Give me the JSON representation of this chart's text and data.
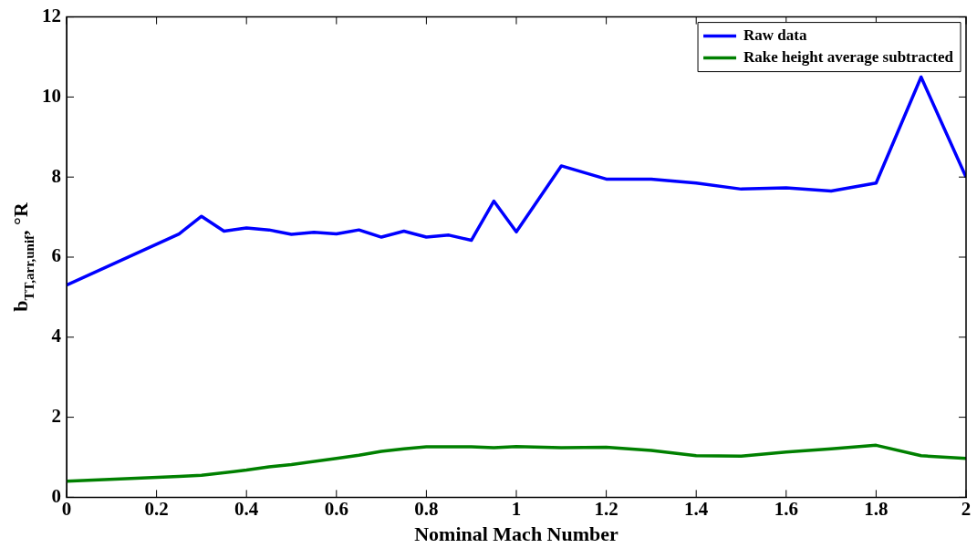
{
  "chart_data": {
    "type": "line",
    "xlabel": "Nominal Mach Number",
    "ylabel": "b$_{T}$$_{T,arr,unif}$, °R",
    "xlim": [
      0,
      2
    ],
    "xticks": [
      0,
      0.2,
      0.4,
      0.6,
      0.8,
      1,
      1.2,
      1.4,
      1.6,
      1.8,
      2
    ],
    "ylim": [
      0,
      12
    ],
    "yticks": [
      0,
      2,
      4,
      6,
      8,
      10,
      12
    ],
    "grid": false,
    "legend": "top right",
    "marker": "none",
    "line_style": "solid",
    "series": [
      {
        "name": "Raw data",
        "color": "#0000ff",
        "x": [
          0,
          0.25,
          0.3,
          0.35,
          0.4,
          0.45,
          0.5,
          0.55,
          0.6,
          0.65,
          0.7,
          0.75,
          0.8,
          0.85,
          0.9,
          0.95,
          1.0,
          1.1,
          1.2,
          1.3,
          1.4,
          1.5,
          1.6,
          1.7,
          1.8,
          1.9,
          2.0
        ],
        "values": [
          5.3,
          6.58,
          7.02,
          6.65,
          6.73,
          6.68,
          6.57,
          6.62,
          6.58,
          6.68,
          6.5,
          6.65,
          6.5,
          6.55,
          6.42,
          7.4,
          6.63,
          8.28,
          7.95,
          7.95,
          7.85,
          7.7,
          7.73,
          7.65,
          7.85,
          10.5,
          8.0
        ]
      },
      {
        "name": "Rake height average subtracted",
        "color": "#008000",
        "x": [
          0,
          0.25,
          0.3,
          0.4,
          0.45,
          0.5,
          0.6,
          0.65,
          0.7,
          0.75,
          0.8,
          0.9,
          0.95,
          1.0,
          1.1,
          1.2,
          1.3,
          1.4,
          1.5,
          1.6,
          1.7,
          1.8,
          1.9,
          2.0
        ],
        "values": [
          0.4,
          0.52,
          0.55,
          0.68,
          0.76,
          0.82,
          0.97,
          1.05,
          1.15,
          1.21,
          1.26,
          1.26,
          1.24,
          1.27,
          1.24,
          1.25,
          1.17,
          1.04,
          1.03,
          1.13,
          1.21,
          1.3,
          1.04,
          0.97
        ]
      }
    ]
  }
}
